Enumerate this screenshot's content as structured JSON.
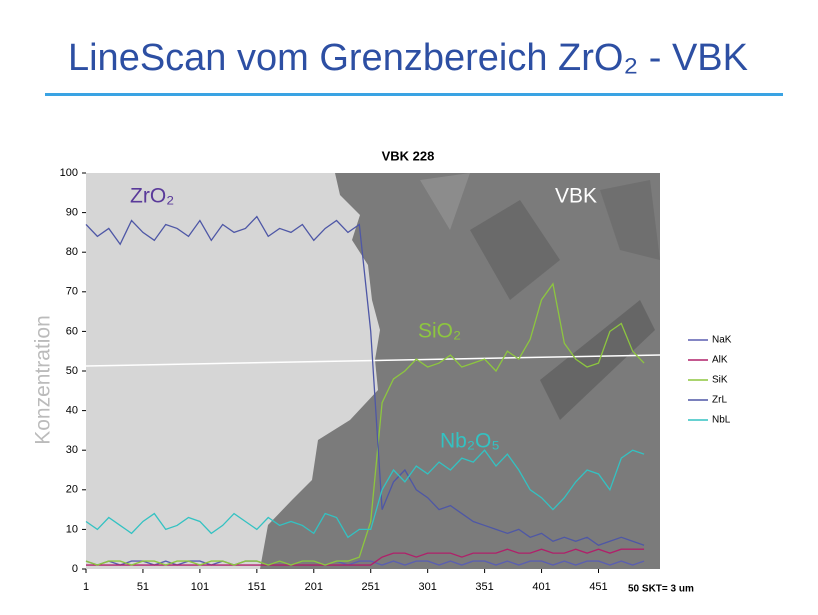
{
  "title": "LineScan vom Grenzbereich ZrO₂ - VBK",
  "chart_data": {
    "type": "line",
    "title": "VBK 228",
    "y_label": "Konzentration",
    "annotations": [
      "ZrO₂",
      "VBK",
      "SiO₂",
      "Nb₂O₅"
    ],
    "footnote": "50 SKT= 3 um",
    "x": [
      1,
      11,
      21,
      31,
      41,
      51,
      61,
      71,
      81,
      91,
      101,
      111,
      121,
      131,
      141,
      151,
      161,
      171,
      181,
      191,
      201,
      211,
      221,
      231,
      241,
      251,
      261,
      271,
      281,
      291,
      301,
      311,
      321,
      331,
      341,
      351,
      361,
      371,
      381,
      391,
      401,
      411,
      421,
      431,
      441,
      451,
      461,
      471,
      481,
      491
    ],
    "xlim": [
      1,
      505
    ],
    "xticks": [
      1,
      51,
      101,
      151,
      201,
      251,
      301,
      351,
      401,
      451
    ],
    "ylim": [
      0,
      100
    ],
    "yticks": [
      0,
      10,
      20,
      30,
      40,
      50,
      60,
      70,
      80,
      90,
      100
    ],
    "series": [
      {
        "name": "NaK",
        "color": "#5b5fb0",
        "values": [
          2,
          1,
          2,
          1,
          2,
          2,
          1,
          2,
          1,
          2,
          2,
          1,
          2,
          1,
          2,
          2,
          1,
          2,
          1,
          2,
          2,
          1,
          2,
          1,
          2,
          2,
          1,
          2,
          1,
          2,
          2,
          1,
          2,
          1,
          2,
          2,
          1,
          2,
          1,
          2,
          2,
          1,
          2,
          1,
          2,
          2,
          1,
          2,
          1,
          2
        ]
      },
      {
        "name": "AlK",
        "color": "#b0206a",
        "values": [
          1,
          1,
          1,
          1,
          1,
          1,
          1,
          1,
          1,
          1,
          1,
          1,
          1,
          1,
          1,
          1,
          1,
          1,
          1,
          1,
          1,
          1,
          1,
          1,
          1,
          1,
          3,
          4,
          4,
          3,
          4,
          4,
          4,
          3,
          4,
          4,
          4,
          5,
          4,
          4,
          5,
          4,
          4,
          5,
          4,
          5,
          4,
          5,
          5,
          5
        ]
      },
      {
        "name": "SiK",
        "color": "#8dc63f",
        "values": [
          2,
          1,
          2,
          2,
          1,
          2,
          2,
          1,
          2,
          2,
          1,
          2,
          2,
          1,
          2,
          2,
          1,
          2,
          1,
          2,
          2,
          1,
          2,
          2,
          3,
          12,
          42,
          48,
          50,
          53,
          51,
          52,
          54,
          51,
          52,
          53,
          50,
          55,
          53,
          58,
          68,
          72,
          57,
          53,
          51,
          52,
          60,
          62,
          55,
          52
        ]
      },
      {
        "name": "ZrL",
        "color": "#4e57a6",
        "values": [
          87,
          84,
          86,
          82,
          88,
          85,
          83,
          87,
          86,
          84,
          88,
          83,
          87,
          85,
          86,
          89,
          84,
          86,
          85,
          87,
          83,
          86,
          88,
          85,
          87,
          60,
          15,
          22,
          25,
          20,
          18,
          15,
          16,
          14,
          12,
          11,
          10,
          9,
          10,
          8,
          9,
          7,
          8,
          7,
          8,
          6,
          7,
          8,
          7,
          6
        ]
      },
      {
        "name": "NbL",
        "color": "#33c2c2",
        "values": [
          12,
          10,
          13,
          11,
          9,
          12,
          14,
          10,
          11,
          13,
          12,
          9,
          11,
          14,
          12,
          10,
          13,
          11,
          12,
          11,
          9,
          14,
          13,
          8,
          10,
          10,
          20,
          25,
          22,
          26,
          24,
          27,
          25,
          28,
          27,
          30,
          26,
          29,
          25,
          20,
          18,
          15,
          18,
          22,
          25,
          24,
          20,
          28,
          30,
          29
        ]
      }
    ]
  }
}
